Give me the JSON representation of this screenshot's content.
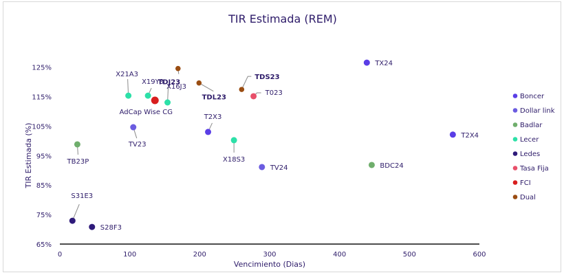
{
  "chart_data": {
    "type": "scatter",
    "title": "TIR Estimada (REM)",
    "xlabel": "Vencimiento (Dias)",
    "ylabel": "TIR Estimada (%)",
    "xlim": [
      0,
      600
    ],
    "ylim": [
      65,
      125
    ],
    "xticks": [
      "0",
      "100",
      "200",
      "300",
      "400",
      "500",
      "600"
    ],
    "yticks": [
      "65%",
      "75%",
      "85%",
      "95%",
      "105%",
      "115%",
      "125%"
    ],
    "grid": false,
    "legend_position": "right",
    "series": [
      {
        "name": "Boncer",
        "color": "#5a3ee6",
        "points": [
          {
            "label": "TX24",
            "x": 439,
            "y": 126.5
          },
          {
            "label": "T2X4",
            "x": 562,
            "y": 102.1
          },
          {
            "label": "T2X3",
            "x": 212,
            "y": 103.0
          }
        ]
      },
      {
        "name": "Dollar link",
        "color": "#6b5ce0",
        "points": [
          {
            "label": "TV23",
            "x": 105,
            "y": 104.6
          },
          {
            "label": "TV24",
            "x": 289,
            "y": 91.1
          }
        ]
      },
      {
        "name": "Badlar",
        "color": "#6fae6c",
        "points": [
          {
            "label": "TB23P",
            "x": 25,
            "y": 98.8
          },
          {
            "label": "BDC24",
            "x": 446,
            "y": 91.8
          }
        ]
      },
      {
        "name": "Lecer",
        "color": "#2de0a8",
        "points": [
          {
            "label": "X21A3",
            "x": 98,
            "y": 115.3
          },
          {
            "label": "X19Y3",
            "x": 126,
            "y": 115.3
          },
          {
            "label": "X16J3",
            "x": 154,
            "y": 113.0
          },
          {
            "label": "X18S3",
            "x": 249,
            "y": 100.2
          }
        ]
      },
      {
        "name": "Ledes",
        "color": "#2e1a7a",
        "points": [
          {
            "label": "S31E3",
            "x": 18,
            "y": 72.9
          },
          {
            "label": "S28F3",
            "x": 46,
            "y": 70.8
          }
        ]
      },
      {
        "name": "Tasa Fija",
        "color": "#e8506a",
        "points": [
          {
            "label": "T023",
            "x": 277,
            "y": 115.1
          }
        ]
      },
      {
        "name": "FCI",
        "color": "#d81e1e",
        "points": [
          {
            "label": "AdCap Wise CG",
            "x": 136,
            "y": 113.7
          }
        ]
      },
      {
        "name": "Dual",
        "color": "#9a4d12",
        "points": [
          {
            "label": "TDJ23",
            "x": 169,
            "y": 124.5
          },
          {
            "label": "TDL23",
            "x": 199,
            "y": 119.6
          },
          {
            "label": "TDS23",
            "x": 260,
            "y": 117.4
          }
        ]
      }
    ]
  }
}
